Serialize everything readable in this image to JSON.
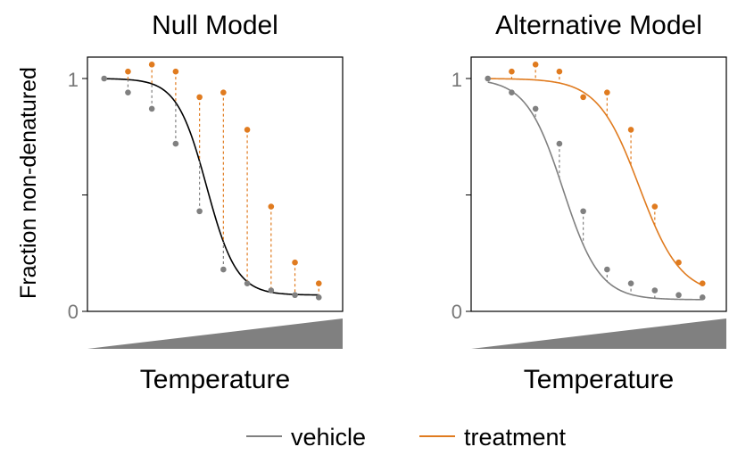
{
  "colors": {
    "vehicle": "#808080",
    "treatment": "#E07B1F",
    "null_fit": "#000000",
    "ramp": "#808080"
  },
  "legend": {
    "vehicle": "vehicle",
    "treatment": "treatment"
  },
  "y_axis_label": "Fraction non-denatured",
  "chart_data": [
    {
      "type": "scatter",
      "title": "Null Model",
      "xlabel": "Temperature",
      "ylabel": "Fraction non-denatured",
      "y_ticks": [
        0,
        1
      ],
      "ylim": [
        0,
        1.08
      ],
      "x": [
        1,
        2,
        3,
        4,
        5,
        6,
        7,
        8,
        9,
        10
      ],
      "xlim": [
        0.3,
        11
      ],
      "series": [
        {
          "name": "vehicle",
          "color": "#808080",
          "values": [
            1.0,
            0.94,
            0.87,
            0.72,
            0.43,
            0.18,
            0.12,
            0.09,
            0.07,
            0.06
          ]
        },
        {
          "name": "treatment",
          "color": "#E07B1F",
          "values": [
            null,
            1.03,
            1.06,
            1.03,
            0.92,
            0.94,
            0.78,
            0.45,
            0.21,
            0.12
          ]
        }
      ],
      "fit_curves": [
        {
          "series": "null",
          "color": "#000000",
          "top": 1.0,
          "bottom": 0.07,
          "midpoint": 5.3,
          "slope": 1.6,
          "x_range": [
            1,
            10
          ]
        }
      ]
    },
    {
      "type": "scatter",
      "title": "Alternative Model",
      "xlabel": "Temperature",
      "ylabel": "",
      "y_ticks": [
        0,
        1
      ],
      "ylim": [
        0,
        1.08
      ],
      "x": [
        1,
        2,
        3,
        4,
        5,
        6,
        7,
        8,
        9,
        10
      ],
      "xlim": [
        0.3,
        11
      ],
      "series": [
        {
          "name": "vehicle",
          "color": "#808080",
          "values": [
            1.0,
            0.94,
            0.87,
            0.72,
            0.43,
            0.18,
            0.12,
            0.09,
            0.07,
            0.06
          ]
        },
        {
          "name": "treatment",
          "color": "#E07B1F",
          "values": [
            null,
            1.03,
            1.06,
            1.03,
            0.92,
            0.94,
            0.78,
            0.45,
            0.21,
            0.12
          ]
        }
      ],
      "fit_curves": [
        {
          "series": "vehicle",
          "color": "#808080",
          "top": 1.0,
          "bottom": 0.05,
          "midpoint": 4.15,
          "slope": 1.3,
          "x_range": [
            1,
            10
          ]
        },
        {
          "series": "treatment",
          "color": "#E07B1F",
          "top": 1.0,
          "bottom": 0.07,
          "midpoint": 7.35,
          "slope": 1.15,
          "x_range": [
            1,
            10
          ]
        }
      ]
    }
  ]
}
